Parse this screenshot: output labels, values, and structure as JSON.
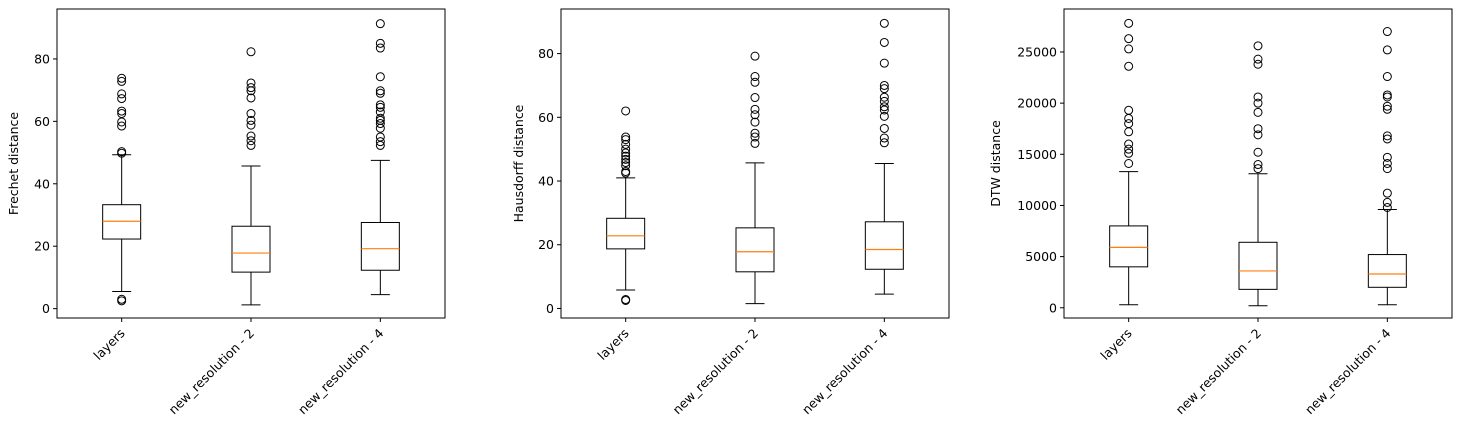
{
  "chart_data": [
    {
      "type": "box",
      "ylabel": "Frechet distance",
      "categories": [
        "layers",
        "new_resolution - 2",
        "new_resolution - 4"
      ],
      "ylim": [
        -3,
        96
      ],
      "yticks": [
        0,
        20,
        40,
        60,
        80
      ],
      "boxes": [
        {
          "whislo": 5.5,
          "q1": 22.3,
          "med": 28.0,
          "q3": 33.3,
          "whishi": 49.3,
          "fliers": [
            2.5,
            3.0,
            49.8,
            50.3,
            58.5,
            59.8,
            62.5,
            63.3,
            67.3,
            68.8,
            72.8,
            73.8
          ]
        },
        {
          "whislo": 1.2,
          "q1": 11.7,
          "med": 17.8,
          "q3": 26.4,
          "whishi": 45.7,
          "fliers": [
            52.3,
            53.8,
            55.3,
            58.8,
            60.3,
            62.5,
            67.5,
            69.8,
            70.8,
            72.3,
            82.3
          ]
        },
        {
          "whislo": 4.5,
          "q1": 12.3,
          "med": 19.2,
          "q3": 27.6,
          "whishi": 47.5,
          "fliers": [
            52.3,
            53.5,
            55.0,
            57.8,
            59.3,
            60.3,
            61.0,
            63.0,
            64.5,
            65.3,
            69.0,
            69.8,
            74.3,
            83.5,
            85.0,
            91.3
          ]
        }
      ]
    },
    {
      "type": "box",
      "ylabel": "Hausdorff distance",
      "categories": [
        "layers",
        "new_resolution - 2",
        "new_resolution - 4"
      ],
      "ylim": [
        -3,
        94
      ],
      "yticks": [
        0,
        20,
        40,
        60,
        80
      ],
      "boxes": [
        {
          "whislo": 5.8,
          "q1": 18.7,
          "med": 22.8,
          "q3": 28.3,
          "whishi": 41.0,
          "fliers": [
            2.5,
            2.8,
            42.5,
            43.0,
            44.8,
            45.8,
            46.8,
            47.8,
            48.8,
            50.0,
            51.5,
            53.0,
            53.8,
            62.0
          ]
        },
        {
          "whislo": 1.5,
          "q1": 11.5,
          "med": 17.8,
          "q3": 25.3,
          "whishi": 45.7,
          "fliers": [
            51.8,
            53.8,
            55.0,
            58.5,
            60.8,
            62.5,
            66.2,
            71.0,
            72.8,
            79.2
          ]
        },
        {
          "whislo": 4.5,
          "q1": 12.3,
          "med": 18.5,
          "q3": 27.2,
          "whishi": 45.5,
          "fliers": [
            52.0,
            53.5,
            56.5,
            60.3,
            62.3,
            63.3,
            65.0,
            66.3,
            69.0,
            70.0,
            77.0,
            83.5,
            89.5
          ]
        }
      ]
    },
    {
      "type": "box",
      "ylabel": "DTW distance",
      "categories": [
        "layers",
        "new_resolution - 2",
        "new_resolution - 4"
      ],
      "ylim": [
        -1000,
        29200
      ],
      "yticks": [
        0,
        5000,
        10000,
        15000,
        20000,
        25000
      ],
      "boxes": [
        {
          "whislo": 300,
          "q1": 4000,
          "med": 5900,
          "q3": 8000,
          "whishi": 13300,
          "fliers": [
            14100,
            15100,
            15500,
            16000,
            17200,
            18000,
            18500,
            19300,
            23600,
            25300,
            26300,
            27800
          ]
        },
        {
          "whislo": 200,
          "q1": 1800,
          "med": 3600,
          "q3": 6400,
          "whishi": 13100,
          "fliers": [
            13600,
            14000,
            15200,
            16900,
            17500,
            19100,
            20000,
            20600,
            23800,
            24300,
            25600
          ]
        },
        {
          "whislo": 300,
          "q1": 2000,
          "med": 3300,
          "q3": 5200,
          "whishi": 9600,
          "fliers": [
            9800,
            10300,
            11200,
            13600,
            14100,
            14700,
            16500,
            16800,
            19400,
            19700,
            20600,
            20800,
            22600,
            25200,
            27000
          ]
        }
      ]
    }
  ],
  "style": {
    "median_color": "#ff7f0e",
    "box_color": "#000000",
    "background": "#ffffff"
  }
}
